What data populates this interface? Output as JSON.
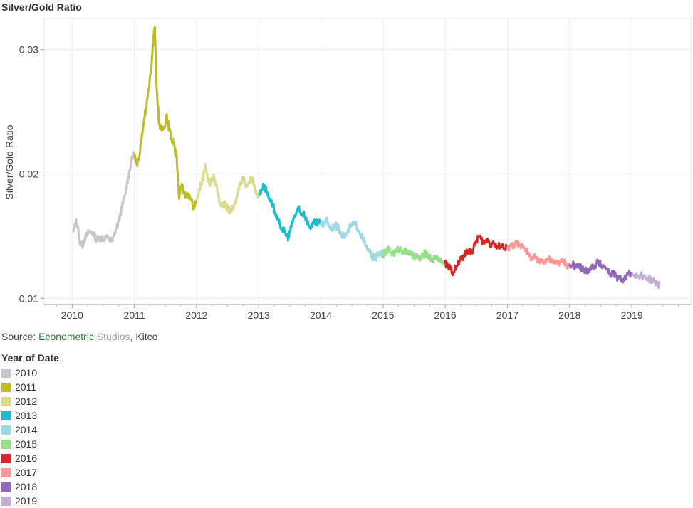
{
  "chart_data": {
    "type": "line",
    "title": "Silver/Gold Ratio",
    "xlabel": "",
    "ylabel": "Silver/Gold Ratio",
    "x_ticks": [
      "2010",
      "2011",
      "2012",
      "2013",
      "2014",
      "2015",
      "2016",
      "2017",
      "2018",
      "2019"
    ],
    "y_ticks": [
      "0.01",
      "0.02",
      "0.03"
    ],
    "xlim": [
      2009.55,
      2019.95
    ],
    "ylim": [
      0.0095,
      0.0325
    ],
    "grid": true,
    "legend_position": "bottom-left",
    "legend_title": "Year of Date",
    "series": [
      {
        "name": "2010",
        "color": "#c7c7c7",
        "points": [
          [
            2010.02,
            0.0153
          ],
          [
            2010.06,
            0.0162
          ],
          [
            2010.09,
            0.0158
          ],
          [
            2010.12,
            0.0146
          ],
          [
            2010.16,
            0.0142
          ],
          [
            2010.2,
            0.0148
          ],
          [
            2010.25,
            0.0152
          ],
          [
            2010.3,
            0.0154
          ],
          [
            2010.35,
            0.0151
          ],
          [
            2010.4,
            0.0147
          ],
          [
            2010.45,
            0.0149
          ],
          [
            2010.5,
            0.0148
          ],
          [
            2010.55,
            0.0149
          ],
          [
            2010.6,
            0.0147
          ],
          [
            2010.65,
            0.0146
          ],
          [
            2010.7,
            0.0155
          ],
          [
            2010.75,
            0.0162
          ],
          [
            2010.8,
            0.0173
          ],
          [
            2010.85,
            0.0183
          ],
          [
            2010.9,
            0.0197
          ],
          [
            2010.95,
            0.021
          ],
          [
            2011.0,
            0.0216
          ]
        ]
      },
      {
        "name": "2011",
        "color": "#bcbd22",
        "points": [
          [
            2011.0,
            0.0216
          ],
          [
            2011.04,
            0.0208
          ],
          [
            2011.08,
            0.0214
          ],
          [
            2011.12,
            0.023
          ],
          [
            2011.16,
            0.0245
          ],
          [
            2011.2,
            0.0258
          ],
          [
            2011.24,
            0.027
          ],
          [
            2011.28,
            0.029
          ],
          [
            2011.31,
            0.0312
          ],
          [
            2011.33,
            0.0318
          ],
          [
            2011.36,
            0.0268
          ],
          [
            2011.4,
            0.024
          ],
          [
            2011.44,
            0.0235
          ],
          [
            2011.48,
            0.0238
          ],
          [
            2011.52,
            0.0248
          ],
          [
            2011.56,
            0.0236
          ],
          [
            2011.6,
            0.0228
          ],
          [
            2011.64,
            0.0225
          ],
          [
            2011.68,
            0.0215
          ],
          [
            2011.72,
            0.018
          ],
          [
            2011.76,
            0.0192
          ],
          [
            2011.8,
            0.0186
          ],
          [
            2011.85,
            0.0182
          ],
          [
            2011.9,
            0.0181
          ],
          [
            2011.95,
            0.0173
          ],
          [
            2012.0,
            0.0178
          ]
        ]
      },
      {
        "name": "2012",
        "color": "#dbdb8d",
        "points": [
          [
            2012.0,
            0.0178
          ],
          [
            2012.05,
            0.0188
          ],
          [
            2012.1,
            0.0196
          ],
          [
            2012.14,
            0.0208
          ],
          [
            2012.18,
            0.0196
          ],
          [
            2012.22,
            0.0192
          ],
          [
            2012.27,
            0.0198
          ],
          [
            2012.32,
            0.0191
          ],
          [
            2012.36,
            0.018
          ],
          [
            2012.41,
            0.0174
          ],
          [
            2012.45,
            0.0176
          ],
          [
            2012.5,
            0.0172
          ],
          [
            2012.55,
            0.017
          ],
          [
            2012.6,
            0.0173
          ],
          [
            2012.65,
            0.0181
          ],
          [
            2012.7,
            0.0193
          ],
          [
            2012.75,
            0.0197
          ],
          [
            2012.8,
            0.0191
          ],
          [
            2012.85,
            0.0194
          ],
          [
            2012.9,
            0.0197
          ],
          [
            2012.95,
            0.0186
          ],
          [
            2013.0,
            0.0183
          ]
        ]
      },
      {
        "name": "2013",
        "color": "#17becf",
        "points": [
          [
            2013.0,
            0.0183
          ],
          [
            2013.05,
            0.0188
          ],
          [
            2013.09,
            0.0191
          ],
          [
            2013.13,
            0.0185
          ],
          [
            2013.18,
            0.018
          ],
          [
            2013.23,
            0.0175
          ],
          [
            2013.28,
            0.0165
          ],
          [
            2013.33,
            0.016
          ],
          [
            2013.38,
            0.0156
          ],
          [
            2013.43,
            0.0152
          ],
          [
            2013.48,
            0.0149
          ],
          [
            2013.52,
            0.0157
          ],
          [
            2013.56,
            0.0164
          ],
          [
            2013.6,
            0.0168
          ],
          [
            2013.64,
            0.0172
          ],
          [
            2013.68,
            0.0167
          ],
          [
            2013.72,
            0.017
          ],
          [
            2013.76,
            0.0164
          ],
          [
            2013.8,
            0.0159
          ],
          [
            2013.85,
            0.0157
          ],
          [
            2013.9,
            0.0161
          ],
          [
            2013.95,
            0.016
          ],
          [
            2014.0,
            0.0161
          ]
        ]
      },
      {
        "name": "2014",
        "color": "#9edae5",
        "points": [
          [
            2014.0,
            0.0161
          ],
          [
            2014.04,
            0.0158
          ],
          [
            2014.08,
            0.0164
          ],
          [
            2014.12,
            0.016
          ],
          [
            2014.17,
            0.0156
          ],
          [
            2014.22,
            0.0159
          ],
          [
            2014.27,
            0.0157
          ],
          [
            2014.32,
            0.0153
          ],
          [
            2014.37,
            0.015
          ],
          [
            2014.42,
            0.0152
          ],
          [
            2014.47,
            0.0157
          ],
          [
            2014.52,
            0.016
          ],
          [
            2014.57,
            0.0159
          ],
          [
            2014.62,
            0.0154
          ],
          [
            2014.67,
            0.0148
          ],
          [
            2014.72,
            0.0142
          ],
          [
            2014.77,
            0.0138
          ],
          [
            2014.82,
            0.0134
          ],
          [
            2014.87,
            0.0132
          ],
          [
            2014.92,
            0.0135
          ],
          [
            2014.97,
            0.0136
          ],
          [
            2015.0,
            0.0135
          ]
        ]
      },
      {
        "name": "2015",
        "color": "#98df8a",
        "points": [
          [
            2015.0,
            0.0135
          ],
          [
            2015.05,
            0.0138
          ],
          [
            2015.1,
            0.0139
          ],
          [
            2015.15,
            0.0136
          ],
          [
            2015.2,
            0.0137
          ],
          [
            2015.25,
            0.014
          ],
          [
            2015.3,
            0.0139
          ],
          [
            2015.35,
            0.0137
          ],
          [
            2015.4,
            0.0138
          ],
          [
            2015.45,
            0.0135
          ],
          [
            2015.5,
            0.0133
          ],
          [
            2015.55,
            0.0134
          ],
          [
            2015.6,
            0.0131
          ],
          [
            2015.65,
            0.0135
          ],
          [
            2015.7,
            0.0136
          ],
          [
            2015.75,
            0.0133
          ],
          [
            2015.8,
            0.0131
          ],
          [
            2015.85,
            0.0133
          ],
          [
            2015.9,
            0.0132
          ],
          [
            2015.95,
            0.0129
          ],
          [
            2016.0,
            0.0128
          ]
        ]
      },
      {
        "name": "2016",
        "color": "#d62728",
        "points": [
          [
            2016.0,
            0.0128
          ],
          [
            2016.04,
            0.0126
          ],
          [
            2016.08,
            0.0124
          ],
          [
            2016.13,
            0.0121
          ],
          [
            2016.18,
            0.0125
          ],
          [
            2016.23,
            0.013
          ],
          [
            2016.28,
            0.0133
          ],
          [
            2016.33,
            0.0136
          ],
          [
            2016.38,
            0.0139
          ],
          [
            2016.43,
            0.0137
          ],
          [
            2016.48,
            0.0143
          ],
          [
            2016.53,
            0.015
          ],
          [
            2016.58,
            0.0147
          ],
          [
            2016.63,
            0.0144
          ],
          [
            2016.68,
            0.0148
          ],
          [
            2016.73,
            0.0143
          ],
          [
            2016.78,
            0.0145
          ],
          [
            2016.83,
            0.014
          ],
          [
            2016.88,
            0.0143
          ],
          [
            2016.93,
            0.0141
          ],
          [
            2017.0,
            0.014
          ]
        ]
      },
      {
        "name": "2017",
        "color": "#ff9896",
        "points": [
          [
            2017.0,
            0.014
          ],
          [
            2017.05,
            0.0142
          ],
          [
            2017.1,
            0.0143
          ],
          [
            2017.15,
            0.0144
          ],
          [
            2017.2,
            0.0142
          ],
          [
            2017.25,
            0.0143
          ],
          [
            2017.3,
            0.0139
          ],
          [
            2017.35,
            0.0134
          ],
          [
            2017.4,
            0.0132
          ],
          [
            2017.45,
            0.0133
          ],
          [
            2017.5,
            0.0129
          ],
          [
            2017.55,
            0.0131
          ],
          [
            2017.6,
            0.013
          ],
          [
            2017.65,
            0.0132
          ],
          [
            2017.7,
            0.013
          ],
          [
            2017.75,
            0.0128
          ],
          [
            2017.8,
            0.013
          ],
          [
            2017.85,
            0.0129
          ],
          [
            2017.9,
            0.013
          ],
          [
            2017.95,
            0.0127
          ],
          [
            2018.0,
            0.0126
          ]
        ]
      },
      {
        "name": "2018",
        "color": "#9467bd",
        "points": [
          [
            2018.0,
            0.0126
          ],
          [
            2018.05,
            0.0127
          ],
          [
            2018.1,
            0.0125
          ],
          [
            2018.15,
            0.0126
          ],
          [
            2018.2,
            0.0124
          ],
          [
            2018.25,
            0.0122
          ],
          [
            2018.3,
            0.0123
          ],
          [
            2018.35,
            0.0125
          ],
          [
            2018.4,
            0.0126
          ],
          [
            2018.45,
            0.0129
          ],
          [
            2018.5,
            0.0127
          ],
          [
            2018.55,
            0.0126
          ],
          [
            2018.6,
            0.0124
          ],
          [
            2018.65,
            0.0119
          ],
          [
            2018.7,
            0.012
          ],
          [
            2018.75,
            0.0117
          ],
          [
            2018.8,
            0.0116
          ],
          [
            2018.85,
            0.0115
          ],
          [
            2018.9,
            0.0117
          ],
          [
            2018.95,
            0.0119
          ],
          [
            2019.0,
            0.012
          ]
        ]
      },
      {
        "name": "2019",
        "color": "#c5b0d5",
        "points": [
          [
            2019.0,
            0.012
          ],
          [
            2019.05,
            0.0119
          ],
          [
            2019.1,
            0.0118
          ],
          [
            2019.15,
            0.0119
          ],
          [
            2019.2,
            0.0117
          ],
          [
            2019.25,
            0.0116
          ],
          [
            2019.3,
            0.0115
          ],
          [
            2019.35,
            0.0114
          ],
          [
            2019.4,
            0.0112
          ],
          [
            2019.44,
            0.011
          ]
        ]
      }
    ]
  },
  "source": {
    "prefix": "Source: ",
    "part1": "Econometric",
    "part2": " Studios",
    "part3": ", Kitco"
  }
}
